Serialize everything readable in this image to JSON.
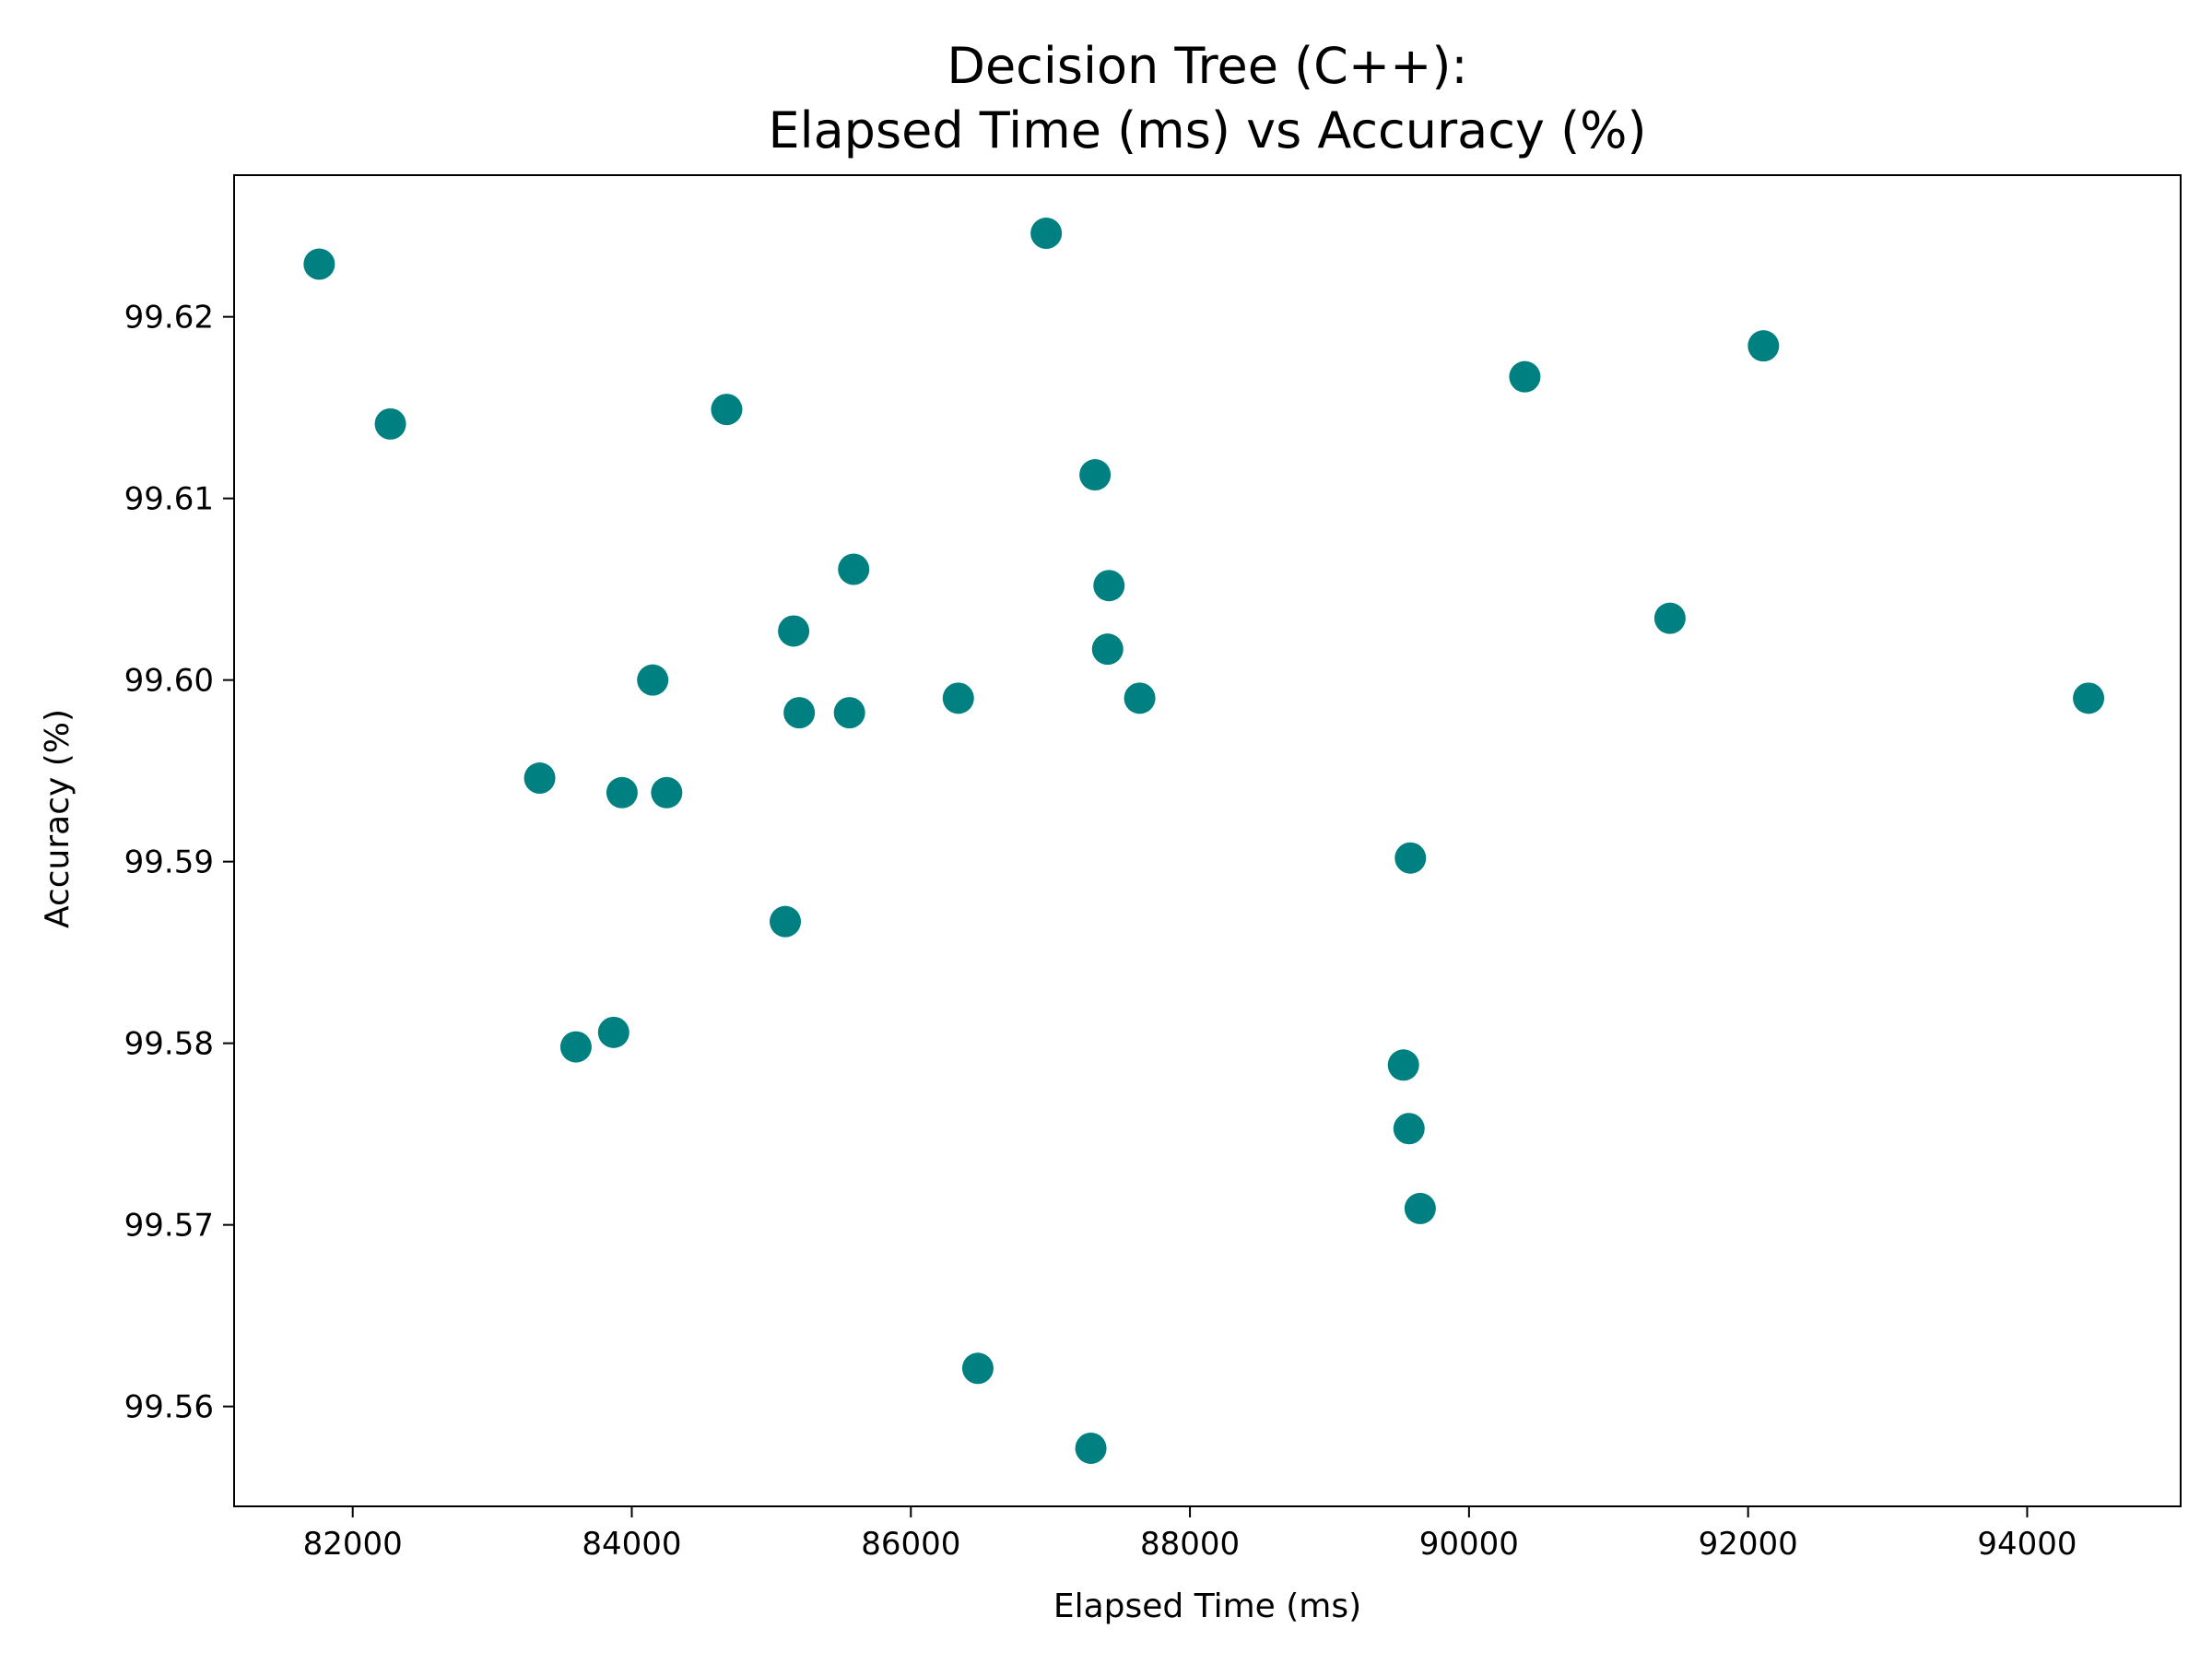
{
  "chart_data": {
    "type": "scatter",
    "title": [
      "Decision Tree (C++):",
      "Elapsed Time (ms) vs Accuracy (%)"
    ],
    "xlabel": "Elapsed Time (ms)",
    "ylabel": "Accuracy (%)",
    "xlim": [
      81150,
      95100
    ],
    "ylim": [
      99.5545,
      99.6278
    ],
    "xticks": [
      82000,
      84000,
      86000,
      88000,
      90000,
      92000,
      94000
    ],
    "xtick_labels": [
      "82000",
      "84000",
      "86000",
      "88000",
      "90000",
      "92000",
      "94000"
    ],
    "yticks": [
      99.56,
      99.57,
      99.58,
      99.59,
      99.6,
      99.61,
      99.62
    ],
    "ytick_labels": [
      "99.56",
      "99.57",
      "99.58",
      "99.59",
      "99.60",
      "99.61",
      "99.62"
    ],
    "grid": false,
    "marker_color": "#008080",
    "points": [
      {
        "x": 81760,
        "y": 99.6229
      },
      {
        "x": 82270,
        "y": 99.6141
      },
      {
        "x": 83340,
        "y": 99.5946
      },
      {
        "x": 83600,
        "y": 99.5798
      },
      {
        "x": 83870,
        "y": 99.5806
      },
      {
        "x": 83930,
        "y": 99.5938
      },
      {
        "x": 84150,
        "y": 99.6
      },
      {
        "x": 84250,
        "y": 99.5938
      },
      {
        "x": 84680,
        "y": 99.6149
      },
      {
        "x": 85100,
        "y": 99.5867
      },
      {
        "x": 85160,
        "y": 99.6027
      },
      {
        "x": 85200,
        "y": 99.5982
      },
      {
        "x": 85560,
        "y": 99.5982
      },
      {
        "x": 85590,
        "y": 99.6061
      },
      {
        "x": 86340,
        "y": 99.599
      },
      {
        "x": 86480,
        "y": 99.5621
      },
      {
        "x": 86970,
        "y": 99.6246
      },
      {
        "x": 87290,
        "y": 99.5577
      },
      {
        "x": 87320,
        "y": 99.6113
      },
      {
        "x": 87410,
        "y": 99.6017
      },
      {
        "x": 87420,
        "y": 99.6052
      },
      {
        "x": 87640,
        "y": 99.599
      },
      {
        "x": 89530,
        "y": 99.5788
      },
      {
        "x": 89570,
        "y": 99.5753
      },
      {
        "x": 89580,
        "y": 99.5902
      },
      {
        "x": 89650,
        "y": 99.5709
      },
      {
        "x": 90400,
        "y": 99.6167
      },
      {
        "x": 91440,
        "y": 99.6034
      },
      {
        "x": 92110,
        "y": 99.6184
      },
      {
        "x": 94440,
        "y": 99.599
      }
    ]
  }
}
